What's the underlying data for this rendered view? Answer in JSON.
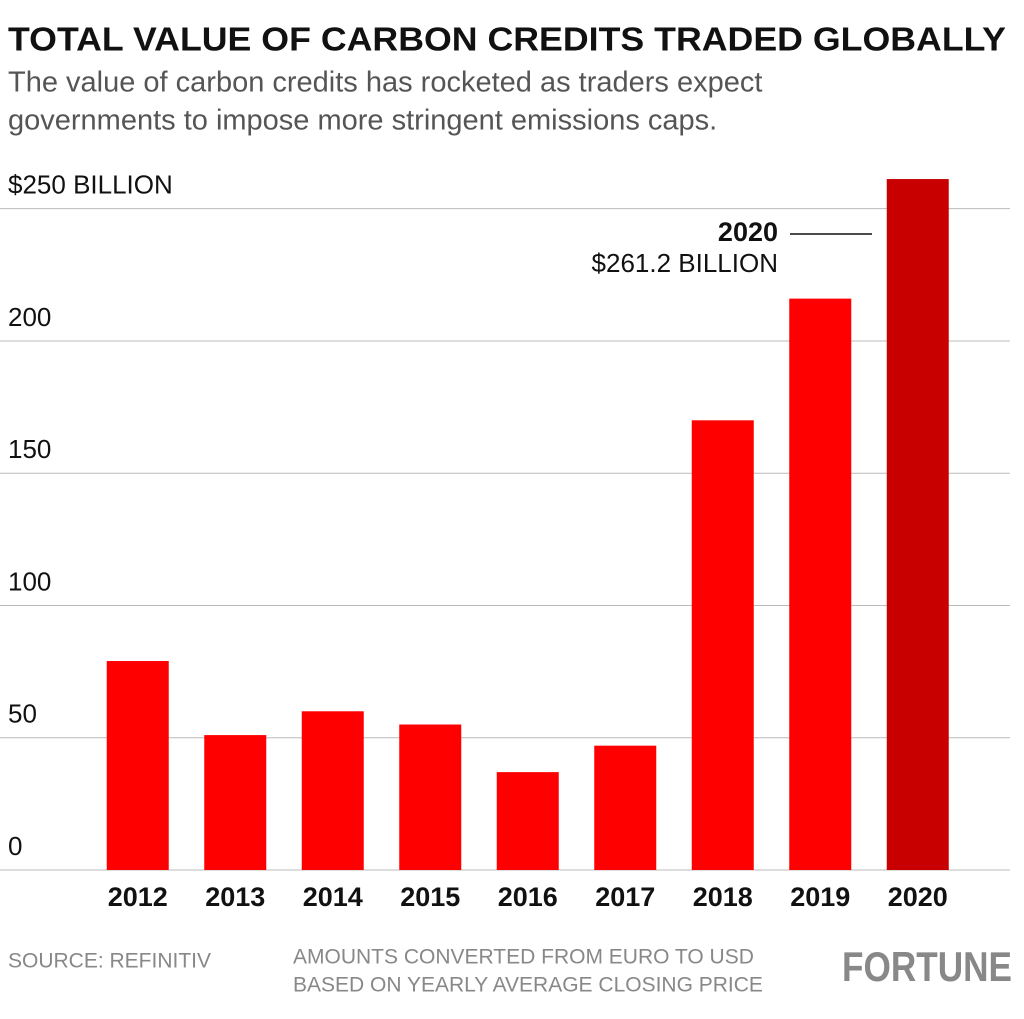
{
  "chart_data": {
    "type": "bar",
    "title": "TOTAL VALUE OF CARBON CREDITS TRADED GLOBALLY",
    "subtitle": [
      "The value of carbon credits has rocketed as traders expect",
      "governments to impose more stringent emissions caps."
    ],
    "categories": [
      "2012",
      "2013",
      "2014",
      "2015",
      "2016",
      "2017",
      "2018",
      "2019",
      "2020"
    ],
    "values": [
      79,
      51,
      60,
      55,
      37,
      47,
      170,
      216,
      261.2
    ],
    "value_labels": [
      null,
      null,
      null,
      null,
      null,
      null,
      null,
      null,
      "$261.2 BILLION"
    ],
    "colors": [
      "#ff0000",
      "#ff0000",
      "#ff0000",
      "#ff0000",
      "#ff0000",
      "#ff0000",
      "#ff0000",
      "#ff0000",
      "#c80000"
    ],
    "ylim": [
      0,
      265
    ],
    "yticks": [
      0,
      50,
      100,
      150,
      200,
      {
        "value": 250,
        "label": "$250 BILLION"
      }
    ],
    "grid": true,
    "source": "SOURCE: REFINITIV",
    "note": [
      "AMOUNTS CONVERTED FROM EURO TO USD",
      "BASED ON YEARLY AVERAGE CLOSING PRICE"
    ],
    "brand": "FORTUNE"
  }
}
